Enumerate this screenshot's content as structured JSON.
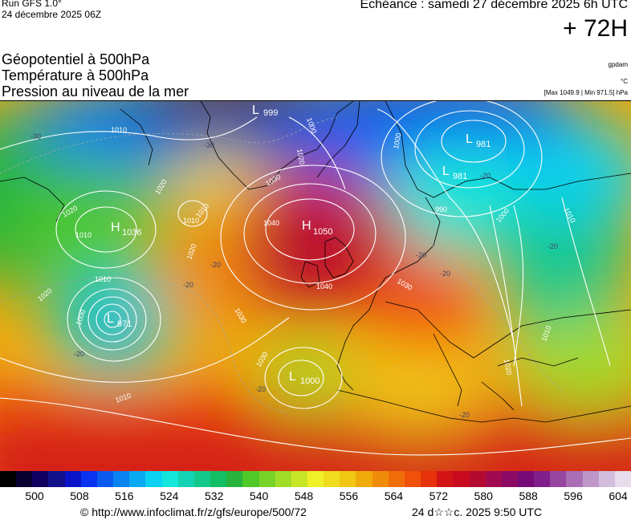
{
  "header": {
    "run": "Run GFS 1.0°",
    "run_date": "24 décembre 2025 06Z",
    "echeance": "Echéance : samedi 27 décembre 2025 6h UTC",
    "lead": "+ 72H"
  },
  "params": {
    "line1": "Géopotentiel à 500hPa",
    "line2": "Température à 500hPa",
    "line3": "Pression au niveau de la mer"
  },
  "units": {
    "geopotential": "gpdam",
    "temperature": "°C",
    "pressure_range": "[Max 1049.9 | Min 971.5] hPa"
  },
  "map": {
    "pressure_centers": [
      {
        "letter": "L",
        "value": "999"
      },
      {
        "letter": "L",
        "value": "981"
      },
      {
        "letter": "L",
        "value": "981"
      },
      {
        "letter": "H",
        "value": "1036"
      },
      {
        "letter": "H",
        "value": "1050"
      },
      {
        "letter": "L",
        "value": "971"
      },
      {
        "letter": "L",
        "value": "1000"
      }
    ],
    "isobar_labels": [
      "1010",
      "1020",
      "1010",
      "1020",
      "1030",
      "1040",
      "1040",
      "1030",
      "1010",
      "1000",
      "1030",
      "1020",
      "1010",
      "1020",
      "1000",
      "1010",
      "990",
      "1000",
      "1010",
      "1020",
      "1010",
      "1030",
      "1020",
      "1010",
      "1000"
    ],
    "temperature_labels": [
      "-30",
      "-30",
      "-20",
      "-20",
      "-20",
      "-20",
      "-20",
      "-20",
      "-20",
      "-20",
      "-20"
    ]
  },
  "colorbar": {
    "ticks": [
      "500",
      "508",
      "516",
      "524",
      "532",
      "540",
      "548",
      "556",
      "564",
      "572",
      "580",
      "588",
      "596",
      "604"
    ],
    "colors": [
      "#000000",
      "#0a0030",
      "#0f0060",
      "#10108a",
      "#0a14c8",
      "#0a32f0",
      "#0a5af0",
      "#0a82f0",
      "#0aaaf0",
      "#0ad2f0",
      "#14e6dc",
      "#14d2b4",
      "#14c88c",
      "#14be64",
      "#28b43c",
      "#50c828",
      "#78d228",
      "#a0dc28",
      "#c8e628",
      "#f0f028",
      "#f0dc1e",
      "#f0c814",
      "#f0aa0a",
      "#f08c0a",
      "#f06e0a",
      "#f0500a",
      "#e6320a",
      "#d21414",
      "#c80a1e",
      "#b40a32",
      "#a00a50",
      "#8c0a64",
      "#780a78",
      "#821e8c",
      "#9646a0",
      "#aa6eb4",
      "#be96c8",
      "#d2bedc",
      "#e6dcec"
    ]
  },
  "footer": {
    "copyright": "© http://www.infoclimat.fr/z/gfs/europe/500/72",
    "generated": "24 d☆☆c. 2025  9:50 UTC"
  }
}
